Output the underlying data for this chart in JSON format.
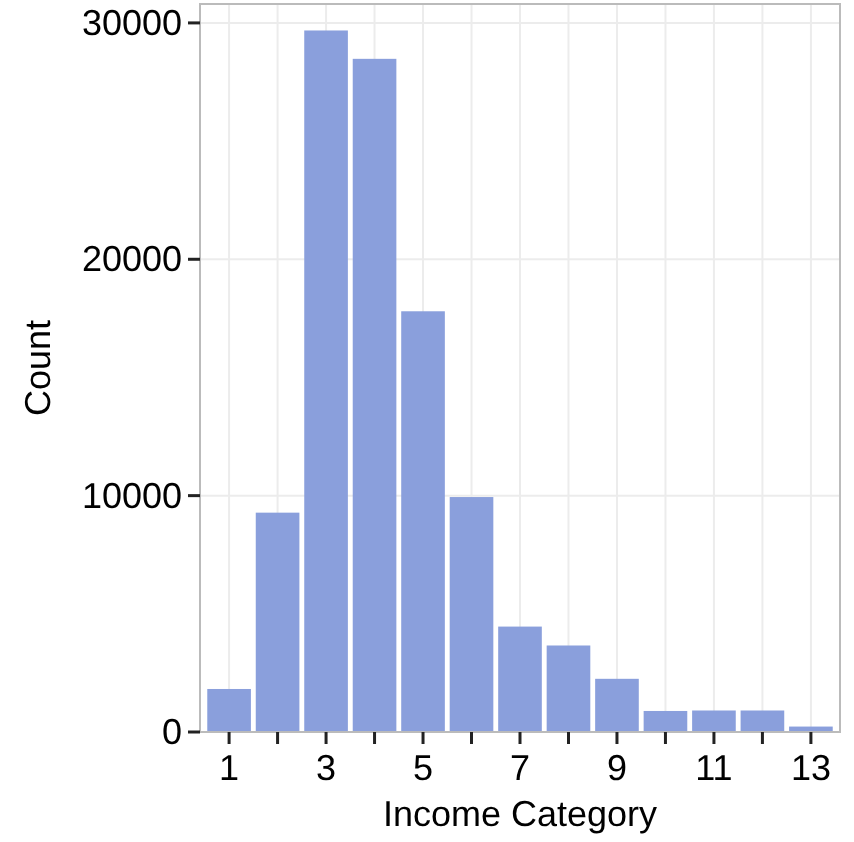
{
  "chart_data": {
    "type": "bar",
    "xlabel": "Income Category",
    "ylabel": "Count",
    "x": [
      1,
      2,
      3,
      4,
      5,
      6,
      7,
      8,
      9,
      10,
      11,
      12,
      13
    ],
    "values": [
      1820,
      9280,
      29680,
      28480,
      17800,
      9940,
      4460,
      3660,
      2250,
      890,
      910,
      910,
      230
    ],
    "color": "#8a9fdc",
    "xlim": [
      0.4,
      13.6
    ],
    "xticks": [
      1,
      {
        "value": 2,
        "label": null
      },
      3,
      {
        "value": 4,
        "label": null
      },
      5,
      {
        "value": 6,
        "label": null
      },
      7,
      {
        "value": 8,
        "label": null
      },
      9,
      {
        "value": 10,
        "label": null
      },
      11,
      {
        "value": 12,
        "label": null
      },
      13
    ],
    "ylim": [
      0,
      30800
    ],
    "yticks": [
      0,
      10000,
      20000,
      30000
    ],
    "grid": true
  }
}
